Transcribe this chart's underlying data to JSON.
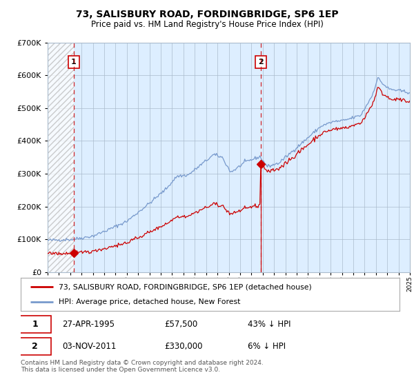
{
  "title": "73, SALISBURY ROAD, FORDINGBRIDGE, SP6 1EP",
  "subtitle": "Price paid vs. HM Land Registry's House Price Index (HPI)",
  "ylim": [
    0,
    700000
  ],
  "yticks": [
    0,
    100000,
    200000,
    300000,
    400000,
    500000,
    600000,
    700000
  ],
  "start_year": 1993,
  "end_year": 2025,
  "sale1_date": "27-APR-1995",
  "sale1_x": 1995.32,
  "sale1_price": 57500,
  "sale2_date": "03-NOV-2011",
  "sale2_x": 2011.84,
  "sale2_price": 330000,
  "sale1_hpi_text": "43% ↓ HPI",
  "sale2_hpi_text": "6% ↓ HPI",
  "legend_red": "73, SALISBURY ROAD, FORDINGBRIDGE, SP6 1EP (detached house)",
  "legend_blue": "HPI: Average price, detached house, New Forest",
  "footer": "Contains HM Land Registry data © Crown copyright and database right 2024.\nThis data is licensed under the Open Government Licence v3.0.",
  "red_color": "#cc0000",
  "blue_color": "#7799cc",
  "bg_color": "#ddeeff",
  "grid_color": "#aabbcc"
}
